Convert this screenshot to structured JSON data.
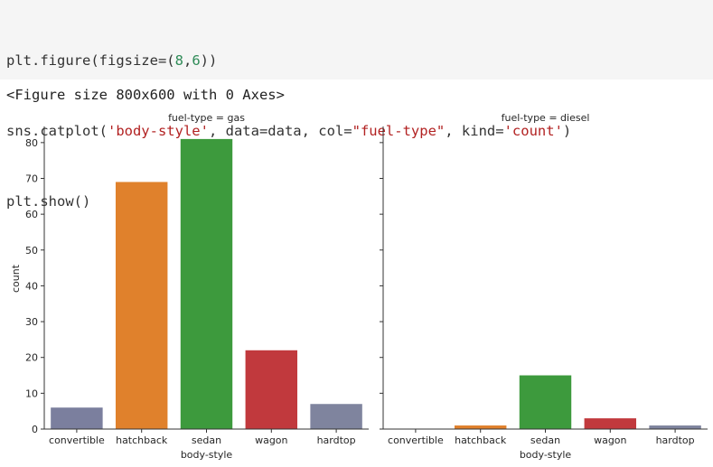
{
  "code": {
    "lines": [
      [
        {
          "t": "plt.figure(figsize=("
        },
        {
          "t": "8",
          "c": "num"
        },
        {
          "t": ","
        },
        {
          "t": "6",
          "c": "num"
        },
        {
          "t": "))"
        }
      ],
      [
        {
          "t": "sns.catplot("
        },
        {
          "t": "'body-style'",
          "c": "str"
        },
        {
          "t": ", data=data, col="
        },
        {
          "t": "\"fuel-type\"",
          "c": "str"
        },
        {
          "t": ", kind="
        },
        {
          "t": "'count'",
          "c": "str"
        },
        {
          "t": ")"
        }
      ],
      [
        {
          "t": "plt.show()"
        }
      ]
    ]
  },
  "output": {
    "text": "<Figure size 800x600 with 0 Axes>"
  },
  "chart_data": {
    "type": "bar",
    "xlabel": "body-style",
    "ylabel": "count",
    "ylim": [
      0,
      84
    ],
    "yticks": [
      0,
      10,
      20,
      30,
      40,
      50,
      60,
      70,
      80
    ],
    "categories": [
      "convertible",
      "hatchback",
      "sedan",
      "wagon",
      "hardtop"
    ],
    "colors": [
      "#7b7f9e",
      "#e0812c",
      "#3d9a3d",
      "#c1393d",
      "#7f849e"
    ],
    "panels": [
      {
        "title": "fuel-type = gas",
        "values": [
          6,
          69,
          81,
          22,
          7
        ]
      },
      {
        "title": "fuel-type = diesel",
        "values": [
          0,
          1,
          15,
          3,
          1
        ]
      }
    ]
  }
}
